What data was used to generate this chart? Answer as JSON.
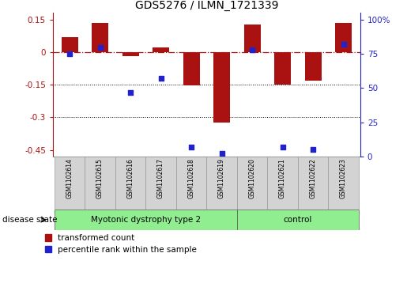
{
  "title": "GDS5276 / ILMN_1721339",
  "samples": [
    "GSM1102614",
    "GSM1102615",
    "GSM1102616",
    "GSM1102617",
    "GSM1102618",
    "GSM1102619",
    "GSM1102620",
    "GSM1102621",
    "GSM1102622",
    "GSM1102623"
  ],
  "transformed_count": [
    0.07,
    0.135,
    -0.02,
    0.02,
    -0.155,
    -0.325,
    0.125,
    -0.15,
    -0.13,
    0.135
  ],
  "percentile_rank": [
    75,
    80,
    47,
    57,
    7,
    2,
    78,
    7,
    5,
    82
  ],
  "bar_color": "#aa1111",
  "dot_color": "#2222cc",
  "ylim_left": [
    -0.48,
    0.18
  ],
  "ylim_right": [
    0,
    105
  ],
  "yticks_left": [
    0.15,
    0.0,
    -0.15,
    -0.3,
    -0.45
  ],
  "yticks_right": [
    100,
    75,
    50,
    25,
    0
  ],
  "dotted_lines": [
    -0.15,
    -0.3
  ],
  "disease_groups": [
    {
      "label": "Myotonic dystrophy type 2",
      "start": 0,
      "end": 6,
      "color": "#90ee90"
    },
    {
      "label": "control",
      "start": 6,
      "end": 10,
      "color": "#90ee90"
    }
  ],
  "disease_state_label": "disease state",
  "legend_items": [
    {
      "label": "transformed count",
      "color": "#aa1111"
    },
    {
      "label": "percentile rank within the sample",
      "color": "#2222cc"
    }
  ],
  "bar_width": 0.55,
  "background_color": "#ffffff"
}
